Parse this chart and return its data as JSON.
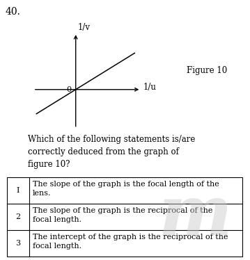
{
  "question_number": "40.",
  "graph": {
    "x_label": "1/u",
    "y_label": "1/v",
    "origin_label": "0",
    "figure_label": "Figure 10"
  },
  "question_text": "Which of the following statements is/are\ncorrectly deduced from the graph of\nfigure 10?",
  "table_rows": [
    {
      "num": "I",
      "text": "The slope of the graph is the focal length of the\nlens."
    },
    {
      "num": "2",
      "text": "The slope of the graph is the reciprocal of the\nfocal length."
    },
    {
      "num": "3",
      "text": "The intercept of the graph is the reciprocal of the\nfocal length."
    }
  ],
  "bg_color": "#ffffff",
  "text_color": "#000000",
  "font_size_question": 8.5,
  "font_size_table": 8.0,
  "font_size_number": 10
}
